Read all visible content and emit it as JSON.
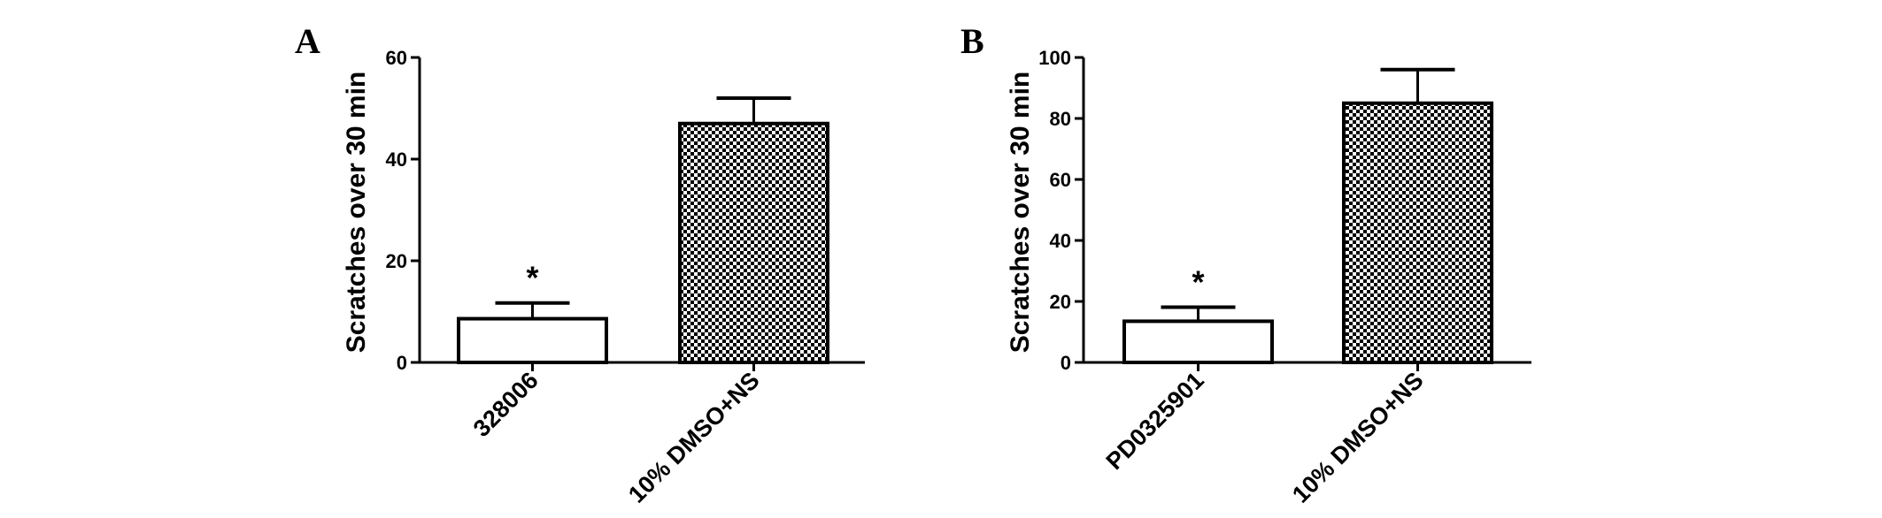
{
  "figure": {
    "background": "#ffffff",
    "ink": "#000000"
  },
  "chart_data": [
    {
      "type": "bar",
      "panel_label": "A",
      "ylabel": "Scratches over 30 min",
      "ylim": [
        0,
        60
      ],
      "yticks": [
        0,
        20,
        40,
        60
      ],
      "categories": [
        "328006",
        "10% DMSO+NS"
      ],
      "values": [
        8.6,
        47
      ],
      "errors": [
        3.1,
        5
      ],
      "fills": [
        "white",
        "checkered"
      ],
      "annotations": [
        "*",
        ""
      ],
      "grid": false
    },
    {
      "type": "bar",
      "panel_label": "B",
      "ylabel": "Scratches over 30 min",
      "ylim": [
        0,
        100
      ],
      "yticks": [
        0,
        20,
        40,
        60,
        80,
        100
      ],
      "categories": [
        "PD0325901",
        "10% DMSO+NS"
      ],
      "values": [
        13.5,
        85
      ],
      "errors": [
        4.6,
        11
      ],
      "fills": [
        "white",
        "checkered"
      ],
      "annotations": [
        "*",
        ""
      ],
      "grid": false
    }
  ]
}
